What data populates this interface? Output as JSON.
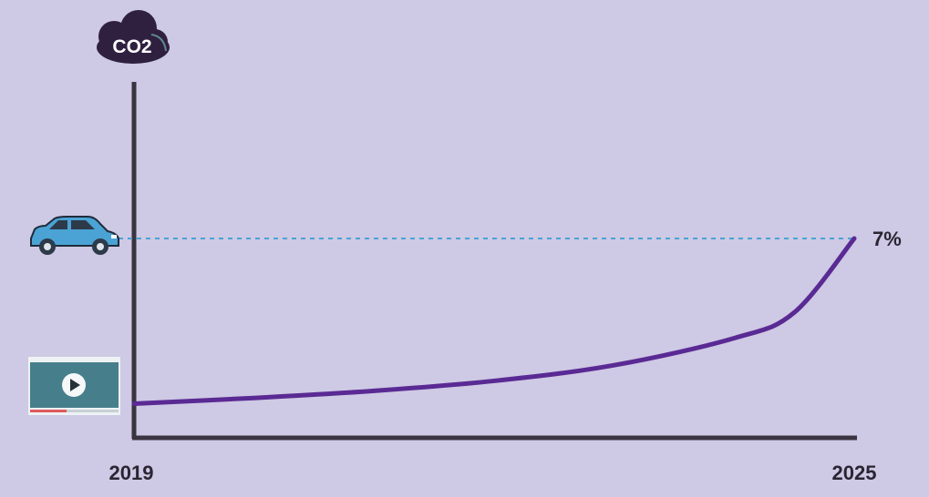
{
  "chart_data": {
    "type": "line",
    "title": "",
    "xlabel": "",
    "ylabel": "CO2",
    "x_ticks": [
      "2019",
      "2025"
    ],
    "xlim": [
      2019,
      2025
    ],
    "ylim": [
      0,
      8
    ],
    "series": [
      {
        "name": "video streaming CO2 share",
        "color": "#5a2a94",
        "x": [
          2019,
          2020,
          2021,
          2022,
          2023,
          2024,
          2024.5,
          2025
        ],
        "y": [
          1.2,
          1.4,
          1.65,
          2.0,
          2.55,
          3.5,
          4.4,
          7
        ]
      }
    ],
    "reference_line": {
      "name": "car emissions",
      "value": 7,
      "label": "7%",
      "color": "#4aa3d4"
    },
    "y_axis_title": "CO2"
  }
}
